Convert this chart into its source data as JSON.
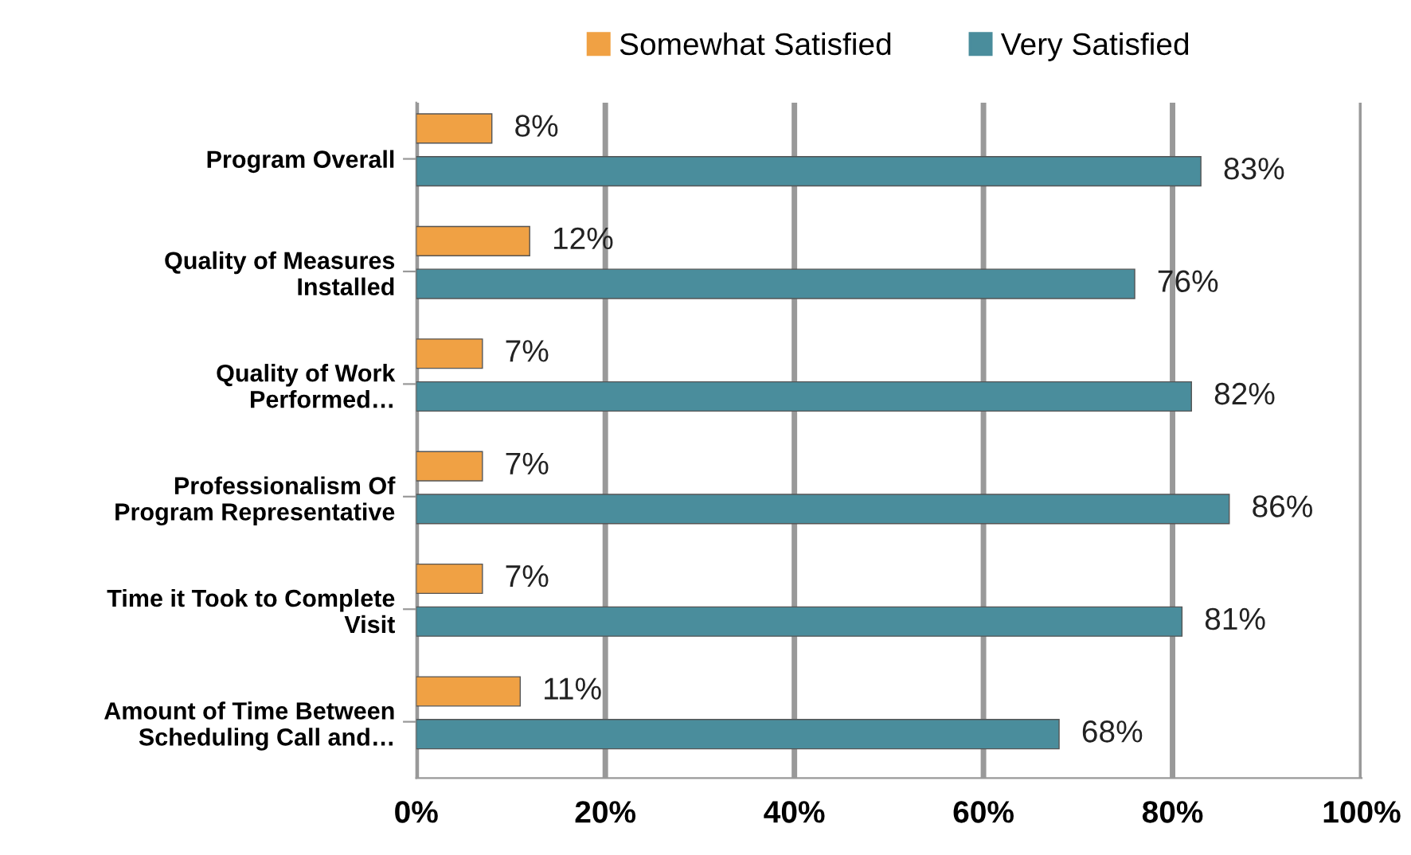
{
  "chart_data": {
    "type": "bar",
    "orientation": "horizontal",
    "categories": [
      "Program Overall",
      "Quality of Measures\nInstalled",
      "Quality of Work\nPerformed…",
      "Professionalism Of\nProgram Representative",
      "Time it Took to Complete\nVisit",
      "Amount of Time Between\nScheduling Call and…"
    ],
    "series": [
      {
        "name": "Somewhat Satisfied",
        "color": "#f0a144",
        "values": [
          8,
          12,
          7,
          7,
          7,
          11
        ],
        "value_labels": [
          "8%",
          "12%",
          "7%",
          "7%",
          "7%",
          "11%"
        ]
      },
      {
        "name": "Very Satisfied",
        "color": "#4a8d9c",
        "values": [
          83,
          76,
          82,
          86,
          81,
          68
        ],
        "value_labels": [
          "83%",
          "76%",
          "82%",
          "86%",
          "81%",
          "68%"
        ]
      }
    ],
    "xlim": [
      0,
      100
    ],
    "xticks": [
      {
        "value": 0,
        "label": "0%"
      },
      {
        "value": 20,
        "label": "20%"
      },
      {
        "value": 40,
        "label": "40%"
      },
      {
        "value": 60,
        "label": "60%"
      },
      {
        "value": 80,
        "label": "80%"
      },
      {
        "value": 100,
        "label": "100%"
      }
    ],
    "grid": "x",
    "legend": "top"
  }
}
